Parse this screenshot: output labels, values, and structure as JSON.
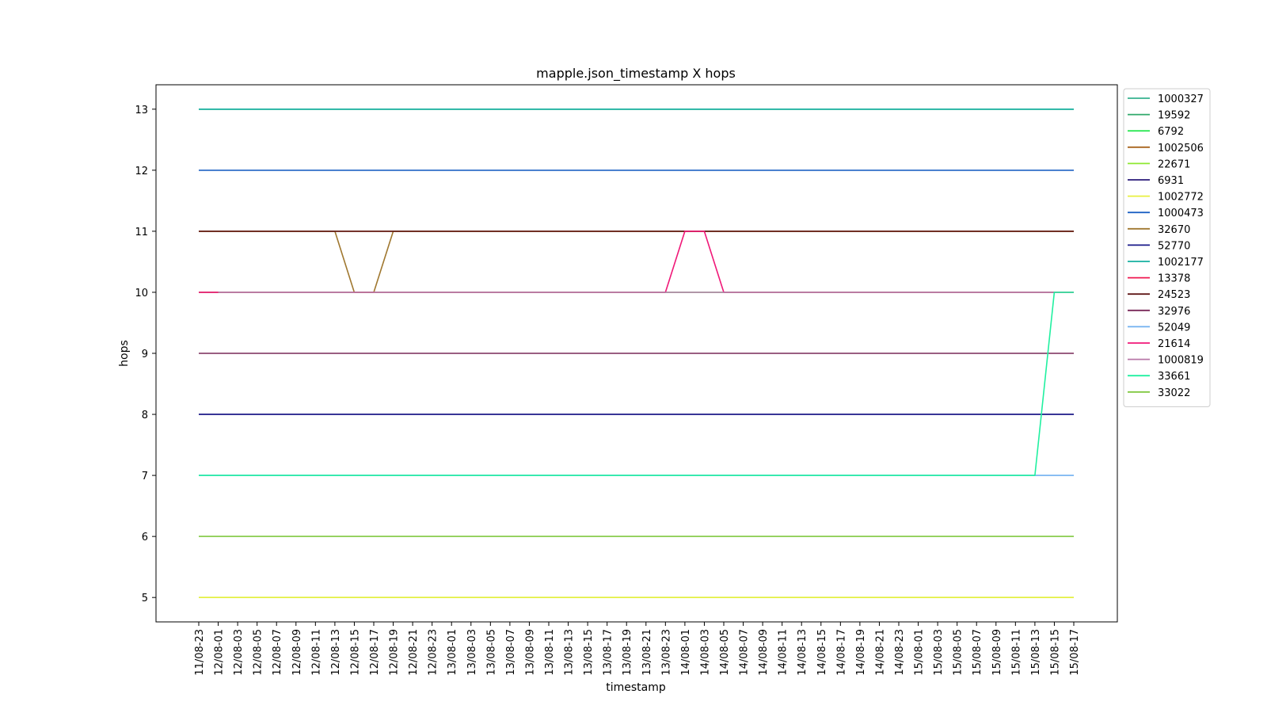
{
  "chart_data": {
    "type": "line",
    "title": "mapple.json_timestamp X hops",
    "xlabel": "timestamp",
    "ylabel": "hops",
    "ylim": [
      4.6,
      13.4
    ],
    "yticks": [
      5,
      6,
      7,
      8,
      9,
      10,
      11,
      12,
      13
    ],
    "grid": false,
    "legend_position": "right-outside",
    "x": [
      "11/08-23",
      "12/08-01",
      "12/08-03",
      "12/08-05",
      "12/08-07",
      "12/08-09",
      "12/08-11",
      "12/08-13",
      "12/08-15",
      "12/08-17",
      "12/08-19",
      "12/08-21",
      "12/08-23",
      "13/08-01",
      "13/08-03",
      "13/08-05",
      "13/08-07",
      "13/08-09",
      "13/08-11",
      "13/08-13",
      "13/08-15",
      "13/08-17",
      "13/08-19",
      "13/08-21",
      "13/08-23",
      "14/08-01",
      "14/08-03",
      "14/08-05",
      "14/08-07",
      "14/08-09",
      "14/08-11",
      "14/08-13",
      "14/08-15",
      "14/08-17",
      "14/08-19",
      "14/08-21",
      "14/08-23",
      "15/08-01",
      "15/08-03",
      "15/08-05",
      "15/08-07",
      "15/08-09",
      "15/08-11",
      "15/08-13",
      "15/08-15",
      "15/08-17"
    ],
    "series": [
      {
        "name": "1000327",
        "color": "#36b28f",
        "segments": [
          [
            0,
            45,
            13
          ]
        ]
      },
      {
        "name": "19592",
        "color": "#2fa86a",
        "segments": [
          [
            0,
            45,
            13
          ]
        ]
      },
      {
        "name": "6792",
        "color": "#2ee855",
        "segments": [
          [
            0,
            45,
            10
          ]
        ]
      },
      {
        "name": "1002506",
        "color": "#a8651e",
        "segments": [
          [
            0,
            45,
            11
          ]
        ]
      },
      {
        "name": "22671",
        "color": "#8ee830",
        "segments": [
          [
            0,
            45,
            5
          ]
        ]
      },
      {
        "name": "6931",
        "color": "#2a1a7a",
        "segments": [
          [
            0,
            45,
            8
          ]
        ]
      },
      {
        "name": "1002772",
        "color": "#e8f040",
        "segments": [
          [
            0,
            45,
            5
          ]
        ]
      },
      {
        "name": "1000473",
        "color": "#1f62c4",
        "segments": [
          [
            0,
            45,
            12
          ]
        ]
      },
      {
        "name": "32670",
        "color": "#a07830",
        "values": [
          11,
          11,
          11,
          11,
          11,
          11,
          11,
          11,
          10,
          10,
          11,
          11,
          11,
          11,
          11,
          11,
          11,
          11,
          11,
          11,
          11,
          11,
          11,
          11,
          11,
          11,
          11,
          11,
          11,
          11,
          11,
          11,
          11,
          11,
          11,
          11,
          11,
          11,
          11,
          11,
          11,
          11,
          11,
          11,
          11,
          11
        ]
      },
      {
        "name": "52770",
        "color": "#1a1a8a",
        "segments": [
          [
            0,
            45,
            8
          ]
        ]
      },
      {
        "name": "1002177",
        "color": "#14b0a0",
        "segments": [
          [
            0,
            45,
            13
          ]
        ]
      },
      {
        "name": "13378",
        "color": "#f01850",
        "segments": [
          [
            0,
            1,
            10
          ]
        ]
      },
      {
        "name": "24523",
        "color": "#601818",
        "segments": [
          [
            0,
            45,
            11
          ]
        ]
      },
      {
        "name": "32976",
        "color": "#782858",
        "segments": [
          [
            0,
            45,
            9
          ]
        ]
      },
      {
        "name": "52049",
        "color": "#70b0f0",
        "segments": [
          [
            0,
            45,
            7
          ]
        ]
      },
      {
        "name": "21614",
        "color": "#f01878",
        "values": [
          10,
          10,
          10,
          10,
          10,
          10,
          10,
          10,
          10,
          10,
          10,
          10,
          10,
          10,
          10,
          10,
          10,
          10,
          10,
          10,
          10,
          10,
          10,
          10,
          10,
          11,
          11,
          10,
          10,
          10,
          10,
          10,
          10,
          10,
          10,
          10,
          10,
          10,
          10,
          10,
          10,
          10,
          10,
          10,
          10,
          10
        ]
      },
      {
        "name": "1000819",
        "color": "#b878a8",
        "segments": [
          [
            1,
            45,
            10
          ]
        ]
      },
      {
        "name": "33661",
        "color": "#20f0a0",
        "values": [
          7,
          7,
          7,
          7,
          7,
          7,
          7,
          7,
          7,
          7,
          7,
          7,
          7,
          7,
          7,
          7,
          7,
          7,
          7,
          7,
          7,
          7,
          7,
          7,
          7,
          7,
          7,
          7,
          7,
          7,
          7,
          7,
          7,
          7,
          7,
          7,
          7,
          7,
          7,
          7,
          7,
          7,
          7,
          7,
          10,
          10
        ]
      },
      {
        "name": "33022",
        "color": "#80c840",
        "segments": [
          [
            0,
            45,
            6
          ]
        ]
      }
    ]
  }
}
